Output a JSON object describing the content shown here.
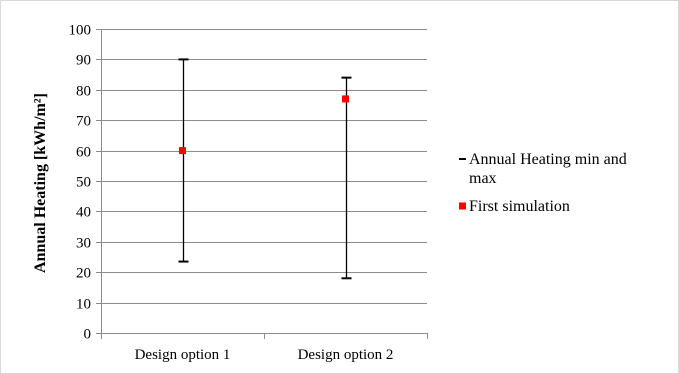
{
  "chart_data": {
    "type": "error-bar",
    "title": "",
    "xlabel": "",
    "ylabel": "Annual  Heating [kWh/m²]",
    "ylim": [
      0,
      100
    ],
    "ytick_step": 10,
    "yticks": [
      "0",
      "10",
      "20",
      "30",
      "40",
      "50",
      "60",
      "70",
      "80",
      "90",
      "100"
    ],
    "grid": "horizontal",
    "legend_placement": "right",
    "categories": [
      "Design option 1",
      "Design option 2"
    ],
    "series": [
      {
        "name": "Annual Heating min and max",
        "kind": "range",
        "color": "#000000",
        "min": [
          23.5,
          18
        ],
        "max": [
          90,
          84
        ]
      },
      {
        "name": "First simulation",
        "kind": "marker",
        "color": "#ff0000",
        "values": [
          60,
          77
        ]
      }
    ],
    "legend": [
      {
        "lines": [
          "Annual Heating min and",
          "max"
        ],
        "marker": "dash",
        "color": "#000000"
      },
      {
        "lines": [
          "First simulation"
        ],
        "marker": "square",
        "color": "#ff0000"
      }
    ]
  }
}
